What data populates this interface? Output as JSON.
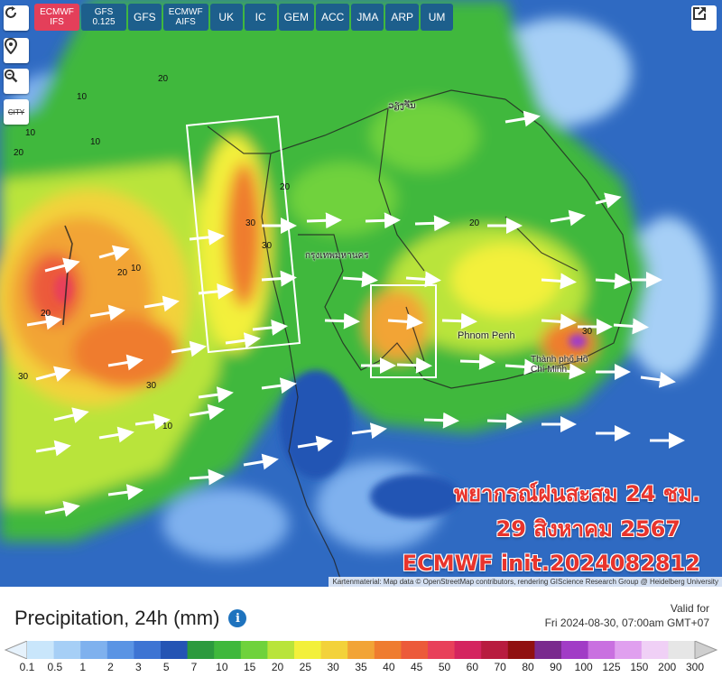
{
  "models": [
    {
      "label": "ECMWF IFS",
      "active": true,
      "small": true
    },
    {
      "label": "GFS 0.125",
      "active": false,
      "small": true
    },
    {
      "label": "GFS",
      "active": false,
      "small": false
    },
    {
      "label": "ECMWF AIFS",
      "active": false,
      "small": true
    },
    {
      "label": "UK",
      "active": false,
      "small": false
    },
    {
      "label": "IC",
      "active": false,
      "small": false
    },
    {
      "label": "GEM",
      "active": false,
      "small": false
    },
    {
      "label": "ACC",
      "active": false,
      "small": false
    },
    {
      "label": "JMA",
      "active": false,
      "small": false
    },
    {
      "label": "ARP",
      "active": false,
      "small": false
    },
    {
      "label": "UM",
      "active": false,
      "small": false
    }
  ],
  "sidebar": {
    "city_label": "CITY"
  },
  "map": {
    "cities": [
      {
        "name": "Phnom Penh"
      },
      {
        "name": "Thành phố Hồ Chí Minh"
      },
      {
        "name": "กรุงเทพมหานคร"
      },
      {
        "name": "ວຽງຈັນ"
      }
    ],
    "contour_labels": [
      "10",
      "20",
      "30",
      "10",
      "20",
      "30",
      "20",
      "10",
      "30",
      "20",
      "10",
      "30",
      "20",
      "10",
      "20",
      "30"
    ],
    "overlay": {
      "line1": "พยากรณ์ฝนสะสม 24 ชม.",
      "line2": "29 สิงหาคม 2567",
      "line3": "ECMWF init.2024082812"
    },
    "attribution": "Kartenmaterial: Map data © OpenStreetMap contributors, rendering GIScience Research Group @ Heidelberg University"
  },
  "legend": {
    "title": "Precipitation, 24h (mm)",
    "valid_label": "Valid for",
    "valid_time": "Fri 2024-08-30, 07:00am GMT+07",
    "ticks": [
      "0.1",
      "0.5",
      "1",
      "2",
      "3",
      "5",
      "7",
      "10",
      "15",
      "20",
      "25",
      "30",
      "35",
      "40",
      "45",
      "50",
      "60",
      "70",
      "80",
      "90",
      "100",
      "125",
      "150",
      "200",
      "300"
    ],
    "colors": [
      "#c9e6fb",
      "#a6cff6",
      "#7fb1ee",
      "#5a94e4",
      "#3d74d3",
      "#2454b4",
      "#2c9a3e",
      "#3fb83c",
      "#6fd23c",
      "#b9e43a",
      "#f3f03a",
      "#f3d23a",
      "#f2a436",
      "#ef7c2f",
      "#ec5a3a",
      "#e8405a",
      "#d4245f",
      "#b81c3f",
      "#901010",
      "#7a2a8e",
      "#a13cc6",
      "#c970e0",
      "#e0a0ef",
      "#f0d0f6",
      "#e6e6e6"
    ]
  }
}
